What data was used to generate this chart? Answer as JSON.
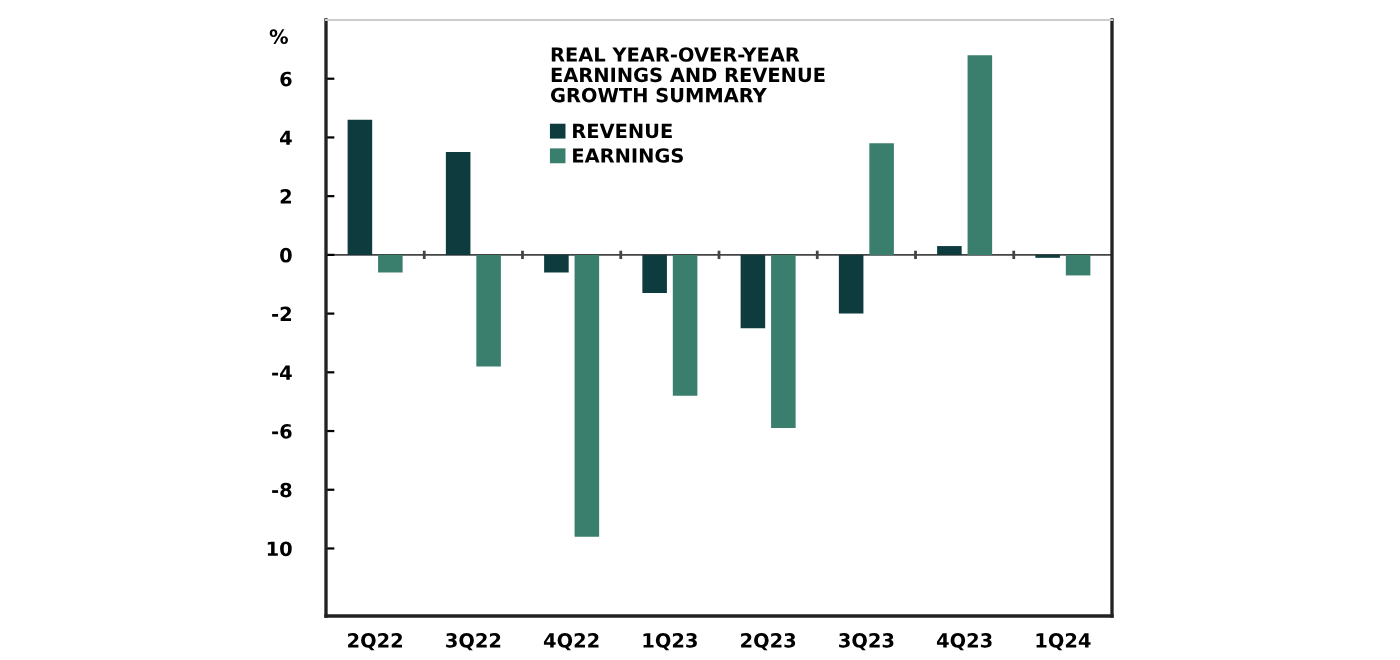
{
  "chart_data": {
    "type": "bar",
    "title": "REAL YEAR-OVER-YEAR\nEARNINGS AND REVENUE\nGROWTH SUMMARY",
    "ylabel": "%",
    "categories": [
      "2Q22",
      "3Q22",
      "4Q22",
      "1Q23",
      "2Q23",
      "3Q23",
      "4Q23",
      "1Q24"
    ],
    "series": [
      {
        "name": "REVENUE",
        "color": "#0d3b3e",
        "values": [
          4.6,
          3.5,
          -0.6,
          -1.3,
          -2.5,
          -2.0,
          0.3,
          -0.1
        ]
      },
      {
        "name": "EARNINGS",
        "color": "#3a7f6e",
        "values": [
          -0.6,
          -3.8,
          -9.6,
          -4.8,
          -5.9,
          3.8,
          6.8,
          -0.7
        ]
      }
    ],
    "ylim": [
      -12.3,
      8.0
    ],
    "yticks": [
      6,
      4,
      2,
      0,
      -2,
      -4,
      -6,
      -8,
      {
        "value": -10,
        "label": "10"
      }
    ],
    "ref_lines": [
      {
        "axis": "y",
        "value": 0,
        "color": "#444444"
      }
    ],
    "legend": "top left"
  }
}
